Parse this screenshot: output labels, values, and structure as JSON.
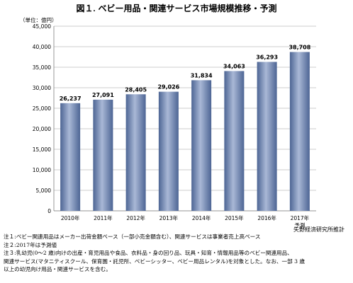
{
  "title_prefix": "図１.",
  "title": "ベビー用品・関連サービス市場規模推移・予測",
  "source": "矢野経済研究所推計",
  "notes": [
    "注１:ベビー関連用品はメーカー出荷金額ベース（一部小売金額含む）、関連サービスは事業者売上高ベース",
    "注２:2017年は予測値",
    "注３:乳幼児(0～2 歳)向けの出産・育児用品や食品、衣料品・身の回り品、玩具・知育・情報用品等のベビー関連用品、",
    "関連サービス(マタニティスクール、保育園・託児所、ベビーシッター、ベビー用品レンタル)を対象とした。なお、一部 3 歳",
    "以上の幼児向け用品・関連サービスを含む。"
  ],
  "chart_data": {
    "type": "bar",
    "title": "ベビー用品・関連サービス市場規模推移・予測",
    "unit_label": "（単位：億円）",
    "categories": [
      [
        "2010年"
      ],
      [
        "2011年"
      ],
      [
        "2012年"
      ],
      [
        "2013年"
      ],
      [
        "2014年"
      ],
      [
        "2015年"
      ],
      [
        "2016年"
      ],
      [
        "2017年",
        "予測"
      ]
    ],
    "values": [
      26237,
      27091,
      28405,
      29026,
      31834,
      34063,
      36293,
      38708
    ],
    "value_labels": [
      "26,237",
      "27,091",
      "28,405",
      "29,026",
      "31,834",
      "34,063",
      "36,293",
      "38,708"
    ],
    "ylim": [
      0,
      45000
    ],
    "yticks": [
      0,
      5000,
      10000,
      15000,
      20000,
      25000,
      30000,
      35000,
      40000,
      45000
    ],
    "ytick_labels": [
      "0",
      "5,000",
      "10,000",
      "15,000",
      "20,000",
      "25,000",
      "30,000",
      "35,000",
      "40,000",
      "45,000"
    ],
    "grid": true,
    "bar_color": "#4d6594",
    "bar_highlight": "#a9b8d6"
  }
}
